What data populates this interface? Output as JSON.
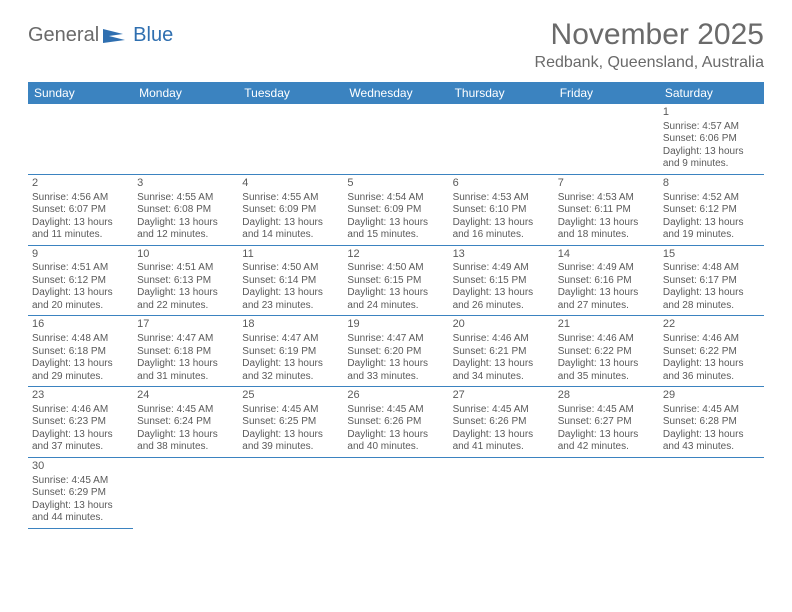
{
  "brand": {
    "part1": "General",
    "part2": "Blue"
  },
  "title": "November 2025",
  "location": "Redbank, Queensland, Australia",
  "colors": {
    "header_bg": "#3b83c0",
    "header_text": "#ffffff",
    "text": "#5a5a5a",
    "brand_blue": "#2f6fb0",
    "cell_border": "#3b83c0"
  },
  "weekdays": [
    "Sunday",
    "Monday",
    "Tuesday",
    "Wednesday",
    "Thursday",
    "Friday",
    "Saturday"
  ],
  "layout": {
    "cols": 7,
    "rows": 6,
    "first_weekday_index": 6,
    "days_in_month": 30
  },
  "days": [
    {
      "n": 1,
      "sunrise": "4:57 AM",
      "sunset": "6:06 PM",
      "daylight_h": 13,
      "daylight_m": 9
    },
    {
      "n": 2,
      "sunrise": "4:56 AM",
      "sunset": "6:07 PM",
      "daylight_h": 13,
      "daylight_m": 11
    },
    {
      "n": 3,
      "sunrise": "4:55 AM",
      "sunset": "6:08 PM",
      "daylight_h": 13,
      "daylight_m": 12
    },
    {
      "n": 4,
      "sunrise": "4:55 AM",
      "sunset": "6:09 PM",
      "daylight_h": 13,
      "daylight_m": 14
    },
    {
      "n": 5,
      "sunrise": "4:54 AM",
      "sunset": "6:09 PM",
      "daylight_h": 13,
      "daylight_m": 15
    },
    {
      "n": 6,
      "sunrise": "4:53 AM",
      "sunset": "6:10 PM",
      "daylight_h": 13,
      "daylight_m": 16
    },
    {
      "n": 7,
      "sunrise": "4:53 AM",
      "sunset": "6:11 PM",
      "daylight_h": 13,
      "daylight_m": 18
    },
    {
      "n": 8,
      "sunrise": "4:52 AM",
      "sunset": "6:12 PM",
      "daylight_h": 13,
      "daylight_m": 19
    },
    {
      "n": 9,
      "sunrise": "4:51 AM",
      "sunset": "6:12 PM",
      "daylight_h": 13,
      "daylight_m": 20
    },
    {
      "n": 10,
      "sunrise": "4:51 AM",
      "sunset": "6:13 PM",
      "daylight_h": 13,
      "daylight_m": 22
    },
    {
      "n": 11,
      "sunrise": "4:50 AM",
      "sunset": "6:14 PM",
      "daylight_h": 13,
      "daylight_m": 23
    },
    {
      "n": 12,
      "sunrise": "4:50 AM",
      "sunset": "6:15 PM",
      "daylight_h": 13,
      "daylight_m": 24
    },
    {
      "n": 13,
      "sunrise": "4:49 AM",
      "sunset": "6:15 PM",
      "daylight_h": 13,
      "daylight_m": 26
    },
    {
      "n": 14,
      "sunrise": "4:49 AM",
      "sunset": "6:16 PM",
      "daylight_h": 13,
      "daylight_m": 27
    },
    {
      "n": 15,
      "sunrise": "4:48 AM",
      "sunset": "6:17 PM",
      "daylight_h": 13,
      "daylight_m": 28
    },
    {
      "n": 16,
      "sunrise": "4:48 AM",
      "sunset": "6:18 PM",
      "daylight_h": 13,
      "daylight_m": 29
    },
    {
      "n": 17,
      "sunrise": "4:47 AM",
      "sunset": "6:18 PM",
      "daylight_h": 13,
      "daylight_m": 31
    },
    {
      "n": 18,
      "sunrise": "4:47 AM",
      "sunset": "6:19 PM",
      "daylight_h": 13,
      "daylight_m": 32
    },
    {
      "n": 19,
      "sunrise": "4:47 AM",
      "sunset": "6:20 PM",
      "daylight_h": 13,
      "daylight_m": 33
    },
    {
      "n": 20,
      "sunrise": "4:46 AM",
      "sunset": "6:21 PM",
      "daylight_h": 13,
      "daylight_m": 34
    },
    {
      "n": 21,
      "sunrise": "4:46 AM",
      "sunset": "6:22 PM",
      "daylight_h": 13,
      "daylight_m": 35
    },
    {
      "n": 22,
      "sunrise": "4:46 AM",
      "sunset": "6:22 PM",
      "daylight_h": 13,
      "daylight_m": 36
    },
    {
      "n": 23,
      "sunrise": "4:46 AM",
      "sunset": "6:23 PM",
      "daylight_h": 13,
      "daylight_m": 37
    },
    {
      "n": 24,
      "sunrise": "4:45 AM",
      "sunset": "6:24 PM",
      "daylight_h": 13,
      "daylight_m": 38
    },
    {
      "n": 25,
      "sunrise": "4:45 AM",
      "sunset": "6:25 PM",
      "daylight_h": 13,
      "daylight_m": 39
    },
    {
      "n": 26,
      "sunrise": "4:45 AM",
      "sunset": "6:26 PM",
      "daylight_h": 13,
      "daylight_m": 40
    },
    {
      "n": 27,
      "sunrise": "4:45 AM",
      "sunset": "6:26 PM",
      "daylight_h": 13,
      "daylight_m": 41
    },
    {
      "n": 28,
      "sunrise": "4:45 AM",
      "sunset": "6:27 PM",
      "daylight_h": 13,
      "daylight_m": 42
    },
    {
      "n": 29,
      "sunrise": "4:45 AM",
      "sunset": "6:28 PM",
      "daylight_h": 13,
      "daylight_m": 43
    },
    {
      "n": 30,
      "sunrise": "4:45 AM",
      "sunset": "6:29 PM",
      "daylight_h": 13,
      "daylight_m": 44
    }
  ],
  "labels": {
    "sunrise_prefix": "Sunrise: ",
    "sunset_prefix": "Sunset: ",
    "daylight_prefix": "Daylight: ",
    "hours_word": " hours",
    "and_word": "and ",
    "minutes_word": " minutes."
  }
}
